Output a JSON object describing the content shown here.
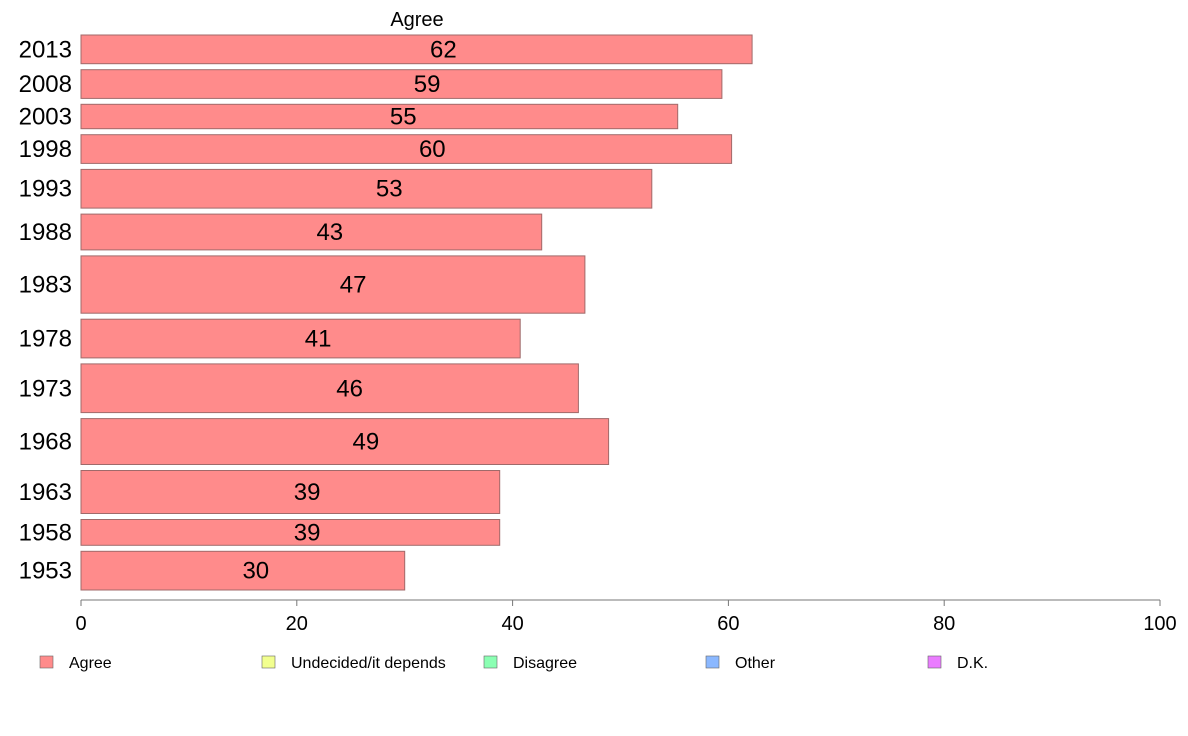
{
  "chart_data": {
    "type": "bar",
    "orientation": "horizontal",
    "panel_title": "Agree",
    "categories": [
      "2013",
      "2008",
      "2003",
      "1998",
      "1993",
      "1988",
      "1983",
      "1978",
      "1973",
      "1968",
      "1963",
      "1958",
      "1953"
    ],
    "series": [
      {
        "name": "Agree",
        "values": [
          62,
          59,
          55,
          60,
          53,
          43,
          47,
          41,
          46,
          49,
          39,
          39,
          30
        ]
      }
    ],
    "data_labels": [
      "62",
      "59",
      "55",
      "60",
      "53",
      "43",
      "47",
      "41",
      "46",
      "49",
      "39",
      "39",
      "30"
    ],
    "bar_values_precise": [
      62.2,
      59.4,
      55.3,
      60.3,
      52.9,
      42.7,
      46.7,
      40.7,
      46.1,
      48.9,
      38.8,
      38.8,
      30.0
    ],
    "bar_widths_relative": [
      1.0,
      1.0,
      0.85,
      1.0,
      1.35,
      1.25,
      2.0,
      1.35,
      1.7,
      1.6,
      1.5,
      0.9,
      1.35
    ],
    "xlim": [
      0,
      100
    ],
    "xticks": [
      0,
      20,
      40,
      60,
      80,
      100
    ],
    "xlabel": "",
    "ylabel": "",
    "grid": false,
    "legend": {
      "placement": "bottom",
      "items": [
        {
          "label": "Agree",
          "color": "#ff8b8b"
        },
        {
          "label": "Undecided/it depends",
          "color": "#f2ff8f"
        },
        {
          "label": "Disagree",
          "color": "#8bffb3"
        },
        {
          "label": "Other",
          "color": "#8bb8ff"
        },
        {
          "label": "D.K.",
          "color": "#ea7cff"
        }
      ]
    },
    "colors": {
      "bar_fill": "#ff8b8b",
      "bar_stroke": "#a06a6a",
      "axis": "#777777"
    }
  }
}
